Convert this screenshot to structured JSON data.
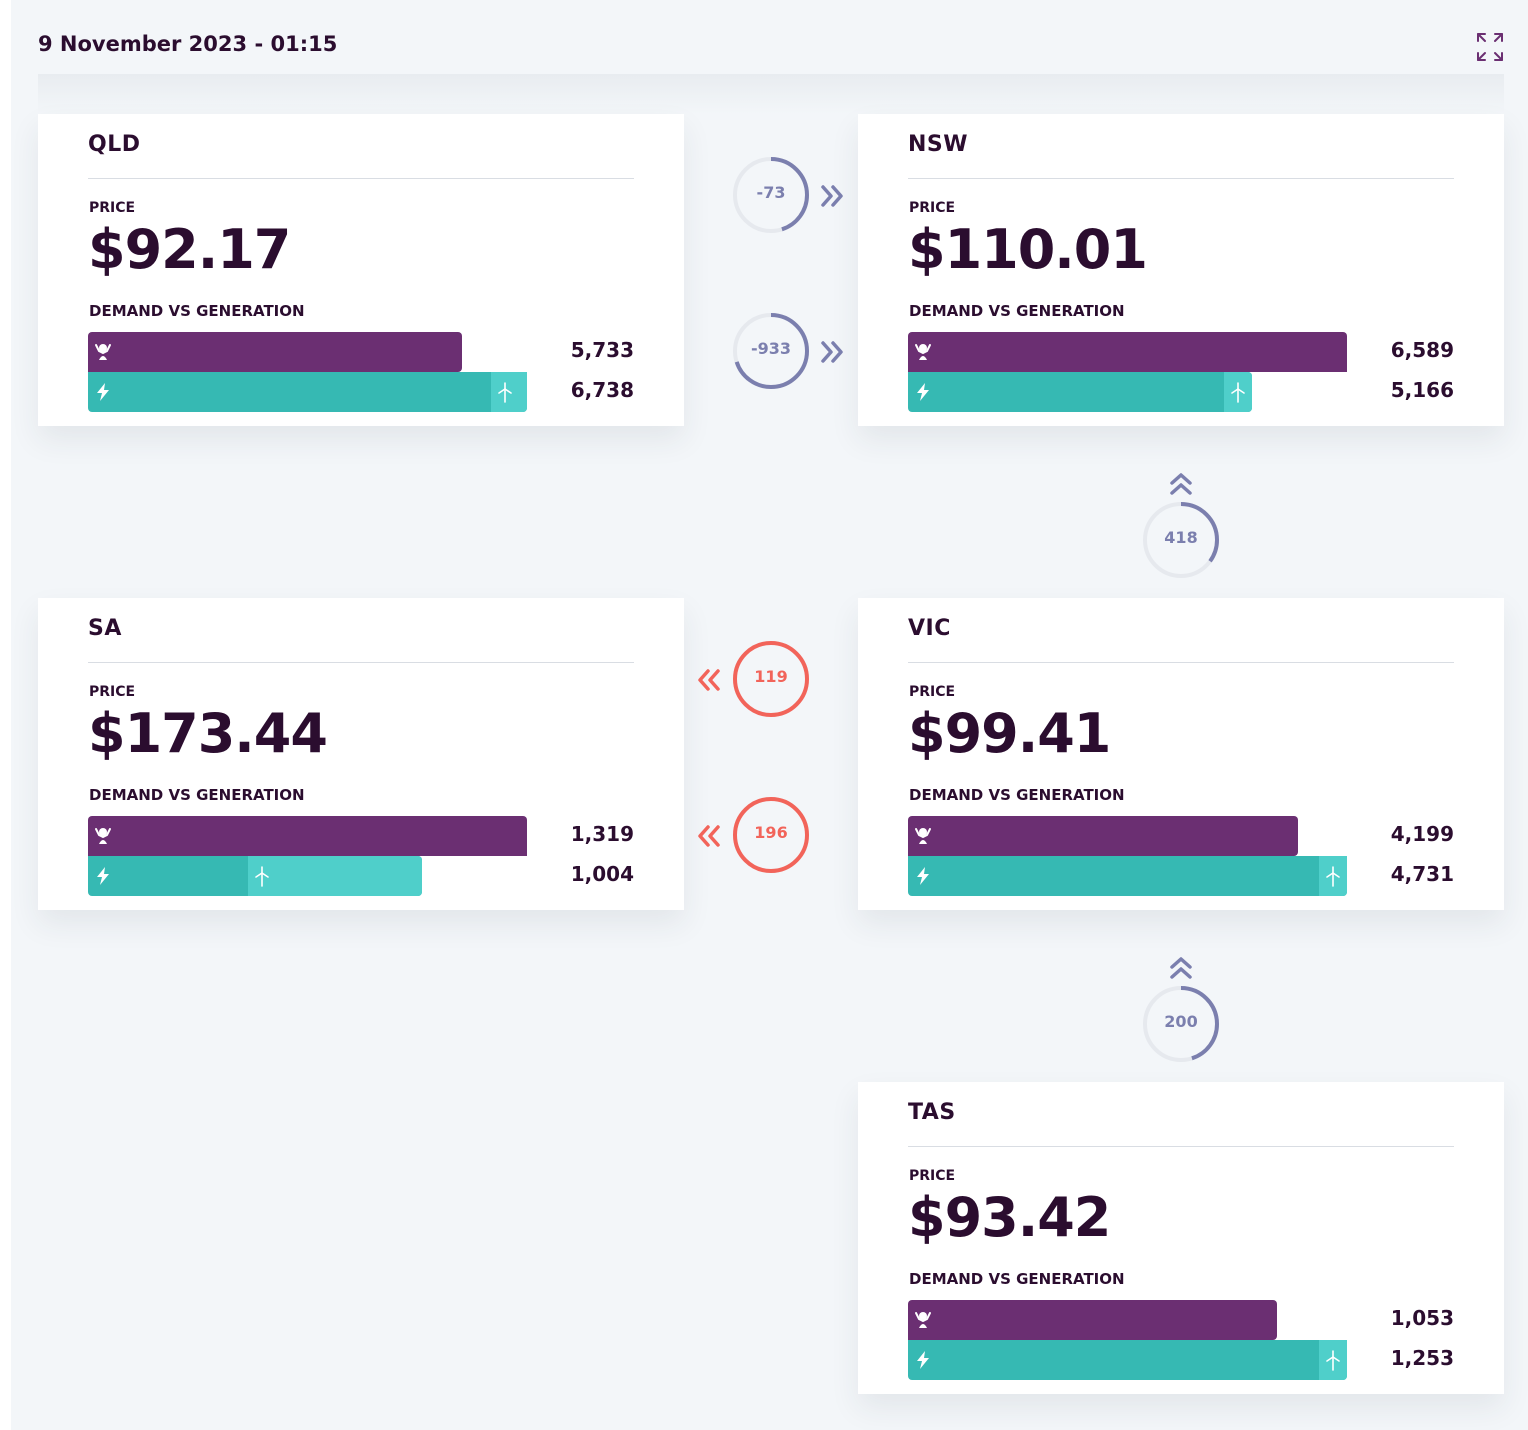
{
  "header": {
    "title": "9 November 2023 - 01:15",
    "expand_icon": "expand-icon"
  },
  "colors": {
    "demand": "#6b2f72",
    "generation": "#36b9b3",
    "wind": "#4fcfca",
    "flow_neutral": "#7b7fae",
    "flow_alert": "#f2645a",
    "text": "#2b0d2f"
  },
  "labels": {
    "price": "PRICE",
    "demand_vs_generation": "DEMAND VS GENERATION"
  },
  "regions": {
    "qld": {
      "name": "QLD",
      "price": "$92.17",
      "demand": "5,733",
      "generation": "6,738",
      "demand_fraction": 0.851,
      "generation_fraction": 1.0,
      "wind_fraction": 0.082
    },
    "nsw": {
      "name": "NSW",
      "price": "$110.01",
      "demand": "6,589",
      "generation": "5,166",
      "demand_fraction": 1.0,
      "generation_fraction": 0.784,
      "wind_fraction": 0.08
    },
    "sa": {
      "name": "SA",
      "price": "$173.44",
      "demand": "1,319",
      "generation": "1,004",
      "demand_fraction": 1.0,
      "generation_fraction": 0.761,
      "wind_fraction": 0.52
    },
    "vic": {
      "name": "VIC",
      "price": "$99.41",
      "demand": "4,199",
      "generation": "4,731",
      "demand_fraction": 0.888,
      "generation_fraction": 1.0,
      "wind_fraction": 0.055
    },
    "tas": {
      "name": "TAS",
      "price": "$93.42",
      "demand": "1,053",
      "generation": "1,253",
      "demand_fraction": 0.84,
      "generation_fraction": 1.0,
      "wind_fraction": 0.055
    }
  },
  "interconnectors": {
    "qld_nsw_1": {
      "value": "-73",
      "direction": "right",
      "status": "neutral",
      "fill_fraction": 0.45
    },
    "qld_nsw_2": {
      "value": "-933",
      "direction": "right",
      "status": "neutral",
      "fill_fraction": 0.7
    },
    "vic_nsw": {
      "value": "418",
      "direction": "up",
      "status": "neutral",
      "fill_fraction": 0.35
    },
    "vic_sa_1": {
      "value": "119",
      "direction": "left",
      "status": "alert",
      "fill_fraction": 1.0
    },
    "vic_sa_2": {
      "value": "196",
      "direction": "left",
      "status": "alert",
      "fill_fraction": 1.0
    },
    "tas_vic": {
      "value": "200",
      "direction": "up",
      "status": "neutral",
      "fill_fraction": 0.45
    }
  }
}
